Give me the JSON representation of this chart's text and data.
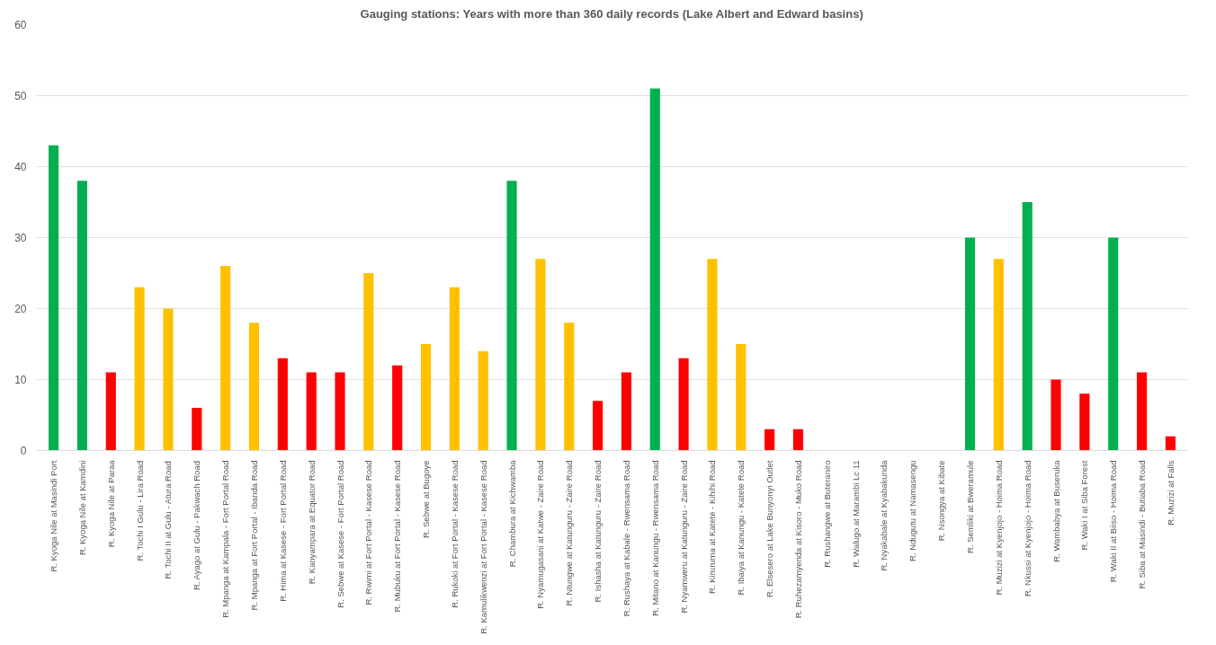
{
  "chart_data": {
    "type": "bar",
    "title": "Gauging stations: Years with more than 360 daily records (Lake Albert and Edward basins)",
    "categories": [
      "R. Kyoga Nile at Masindi Port",
      "R. Kyoga Nile at Kamdini",
      "R. Kyoga Nile at Paraa",
      "R. Tochi I Gulu - Lira Road",
      "R. Tochi II at Gulu - Atura Road",
      "R. Ayago at Gulu - Pakwach Road",
      "R. Mpanga at Kampala - Fort Portal Road",
      "R. Mpanga at Fort Portal - Ibanda Road",
      "R. Hima at Kasese - Fort Portal Road",
      "R. Kanyampara at Equator Road",
      "R. Sebwe at Kasese - Fort Portal Road",
      "R. Rwimi at Fort Portal - Kasese Road",
      "R. Mubuku at Fort Portal - Kasese Road",
      "R. Sebwe at Bugoye",
      "R. Rukoki at Fort Portal - Kasese Road",
      "R. Kamulikwenzi at Fort Portal - Kasese Road",
      "R. Chambura at Kichwamba",
      "R. Nyamugasani at Katwe - Zaire Road",
      "R. Ntungwe at Katunguru - Zaire Road",
      "R. Ishasha at Katunguru - Zaire Road",
      "R. Rushaya at Kabale - Rwensama Road",
      "R. Mitano at Kanungu - Rwensama Road",
      "R. Nyamweru at Katunguru - Zaire Road",
      "R. Kiruruma at Katete - Kihihi Road",
      "R. Ibaiya at Kanungu - Katete Road",
      "R. Elsesero at Lake Bunyonyi Outlet",
      "R. Ruhezamyenda at Kisoro - Muko Road",
      "R. Rushangwe at Buteraniro",
      "R. Walugo at Marambi Lc 11",
      "R. Nyakabale at Kyabakunda",
      "R. Ndugutu at Namasengu",
      "R. Nsongya at Kibate",
      "R. Semliki at Bweramule",
      "R. Muzizi at Kyenjojo - Hoima Road",
      "R. Nkussi at Kyenjojo - Hoima Road",
      "R. Wambabya at Buseruka",
      "R. Waki I at Siba Forest",
      "R. Waki II at Biiso - Hoima Road",
      "R. Siba at Masindi - Butiaba Road",
      "R. Muzizi at Falls"
    ],
    "values": [
      43,
      38,
      11,
      23,
      20,
      6,
      26,
      18,
      13,
      11,
      11,
      25,
      12,
      15,
      23,
      14,
      38,
      27,
      18,
      7,
      11,
      51,
      13,
      27,
      15,
      3,
      3,
      0,
      0,
      0,
      0,
      0,
      30,
      27,
      35,
      10,
      8,
      30,
      11,
      2
    ],
    "colors": [
      "#00b050",
      "#00b050",
      "#ff0000",
      "#ffc000",
      "#ffc000",
      "#ff0000",
      "#ffc000",
      "#ffc000",
      "#ff0000",
      "#ff0000",
      "#ff0000",
      "#ffc000",
      "#ff0000",
      "#ffc000",
      "#ffc000",
      "#ffc000",
      "#00b050",
      "#ffc000",
      "#ffc000",
      "#ff0000",
      "#ff0000",
      "#00b050",
      "#ff0000",
      "#ffc000",
      "#ffc000",
      "#ff0000",
      "#ff0000",
      "#ff0000",
      "#ff0000",
      "#ff0000",
      "#ff0000",
      "#ff0000",
      "#00b050",
      "#ffc000",
      "#00b050",
      "#ff0000",
      "#ff0000",
      "#00b050",
      "#ff0000",
      "#ff0000"
    ],
    "ylim": [
      0,
      60
    ],
    "yticks": [
      0,
      10,
      20,
      30,
      40,
      50,
      60
    ],
    "grid": "y"
  }
}
